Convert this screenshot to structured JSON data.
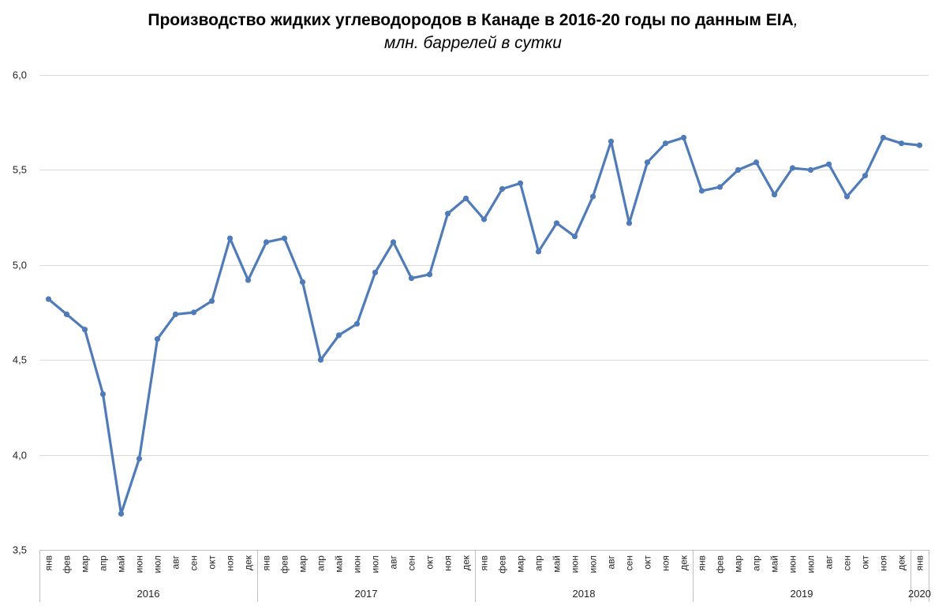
{
  "title": "Производство жидких углеводородов в Канаде в 2016-20 годы по данным EIA",
  "title_suffix": ",",
  "subtitle": "млн. баррелей в сутки",
  "colors": {
    "series": "#4f7bb9",
    "grid": "#d9d9d9",
    "axis": "#bfbfbf"
  },
  "chart_data": {
    "type": "line",
    "title": "Производство жидких углеводородов в Канаде в 2016-20 годы по данным EIA, млн. баррелей в сутки",
    "xlabel": "",
    "ylabel": "",
    "ylim": [
      3.5,
      6.0
    ],
    "yticks": [
      3.5,
      4.0,
      4.5,
      5.0,
      5.5,
      6.0
    ],
    "ytick_labels": [
      "3,5",
      "4,0",
      "4,5",
      "5,0",
      "5,5",
      "6,0"
    ],
    "grid": true,
    "legend": "none",
    "marker": "circle",
    "month_labels": [
      "янв",
      "фев",
      "мар",
      "апр",
      "май",
      "июн",
      "июл",
      "авг",
      "сен",
      "окт",
      "ноя",
      "дек",
      "янв",
      "фев",
      "мар",
      "апр",
      "май",
      "июн",
      "июл",
      "авг",
      "сен",
      "окт",
      "ноя",
      "дек",
      "янв",
      "фев",
      "мар",
      "апр",
      "май",
      "июн",
      "июл",
      "авг",
      "сен",
      "окт",
      "ноя",
      "дек",
      "янв",
      "фев",
      "мар",
      "апр",
      "май",
      "июн",
      "июл",
      "авг",
      "сен",
      "окт",
      "ноя",
      "дек",
      "янв"
    ],
    "year_groups": [
      {
        "label": "2016",
        "months": 12
      },
      {
        "label": "2017",
        "months": 12
      },
      {
        "label": "2018",
        "months": 12
      },
      {
        "label": "2019",
        "months": 12
      },
      {
        "label": "2020",
        "months": 1
      }
    ],
    "series": [
      {
        "values": [
          4.82,
          4.74,
          4.66,
          4.32,
          3.69,
          3.98,
          4.61,
          4.74,
          4.75,
          4.81,
          5.14,
          4.92,
          5.12,
          5.14,
          4.91,
          4.5,
          4.63,
          4.69,
          4.96,
          5.12,
          4.93,
          4.95,
          5.27,
          5.35,
          5.24,
          5.4,
          5.43,
          5.07,
          5.22,
          5.15,
          5.36,
          5.65,
          5.22,
          5.54,
          5.64,
          5.67,
          5.39,
          5.41,
          5.5,
          5.54,
          5.37,
          5.51,
          5.5,
          5.53,
          5.36,
          5.47,
          5.67,
          5.64,
          5.63
        ]
      }
    ]
  }
}
